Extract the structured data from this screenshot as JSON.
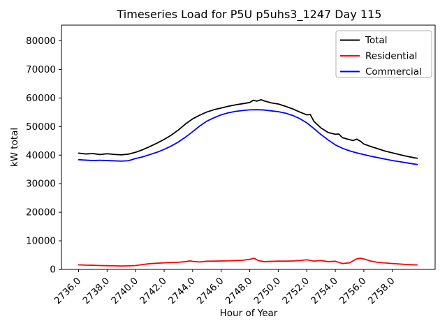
{
  "window": {
    "background": "#ffffff"
  },
  "chart_data": {
    "type": "line",
    "title": "Timeseries Load for P5U p5uhs3_1247  Day 115",
    "xlabel": "Hour of Year",
    "ylabel": "kW total",
    "xlim": [
      2734.8,
      2761.0
    ],
    "ylim": [
      0,
      85500
    ],
    "grid": false,
    "legend_position": "upper right",
    "xticks": [
      2736,
      2738,
      2740,
      2742,
      2744,
      2746,
      2748,
      2750,
      2752,
      2754,
      2756,
      2758
    ],
    "xtick_labels": [
      "2736.0",
      "2738.0",
      "2740.0",
      "2742.0",
      "2744.0",
      "2746.0",
      "2748.0",
      "2750.0",
      "2752.0",
      "2754.0",
      "2756.0",
      "2758.0"
    ],
    "yticks": [
      0,
      10000,
      20000,
      30000,
      40000,
      50000,
      60000,
      70000,
      80000
    ],
    "ytick_labels": [
      "0",
      "10000",
      "20000",
      "30000",
      "40000",
      "50000",
      "60000",
      "70000",
      "80000"
    ],
    "series": [
      {
        "name": "Total",
        "color": "#000000",
        "points": [
          [
            2736,
            40700
          ],
          [
            2736.5,
            40400
          ],
          [
            2737,
            40550
          ],
          [
            2737.5,
            40200
          ],
          [
            2738,
            40500
          ],
          [
            2738.5,
            40250
          ],
          [
            2739,
            40100
          ],
          [
            2739.5,
            40350
          ],
          [
            2740,
            41000
          ],
          [
            2740.5,
            41900
          ],
          [
            2741,
            43000
          ],
          [
            2741.5,
            44200
          ],
          [
            2742,
            45500
          ],
          [
            2742.5,
            47000
          ],
          [
            2743,
            48800
          ],
          [
            2743.5,
            50900
          ],
          [
            2744,
            52700
          ],
          [
            2744.5,
            54000
          ],
          [
            2745,
            55100
          ],
          [
            2745.5,
            55900
          ],
          [
            2746,
            56500
          ],
          [
            2746.5,
            57100
          ],
          [
            2747,
            57600
          ],
          [
            2747.5,
            58000
          ],
          [
            2748,
            58400
          ],
          [
            2748.25,
            59200
          ],
          [
            2748.5,
            58900
          ],
          [
            2748.8,
            59400
          ],
          [
            2749,
            59000
          ],
          [
            2749.5,
            58300
          ],
          [
            2750,
            57900
          ],
          [
            2750.5,
            57100
          ],
          [
            2751,
            56200
          ],
          [
            2751.5,
            55100
          ],
          [
            2752,
            54100
          ],
          [
            2752.25,
            54200
          ],
          [
            2752.5,
            51800
          ],
          [
            2753,
            49500
          ],
          [
            2753.25,
            48700
          ],
          [
            2753.5,
            47900
          ],
          [
            2754,
            47300
          ],
          [
            2754.25,
            47400
          ],
          [
            2754.5,
            46100
          ],
          [
            2755,
            45400
          ],
          [
            2755.25,
            45100
          ],
          [
            2755.5,
            45600
          ],
          [
            2755.75,
            44900
          ],
          [
            2756,
            43900
          ],
          [
            2756.5,
            43000
          ],
          [
            2757,
            42200
          ],
          [
            2757.5,
            41400
          ],
          [
            2758,
            40800
          ],
          [
            2758.5,
            40200
          ],
          [
            2759,
            39600
          ],
          [
            2759.5,
            39100
          ],
          [
            2759.75,
            38900
          ]
        ]
      },
      {
        "name": "Residential",
        "color": "#ff0000",
        "points": [
          [
            2736,
            1600
          ],
          [
            2736.5,
            1500
          ],
          [
            2737,
            1450
          ],
          [
            2737.5,
            1350
          ],
          [
            2738,
            1300
          ],
          [
            2738.5,
            1250
          ],
          [
            2739,
            1200
          ],
          [
            2739.5,
            1250
          ],
          [
            2740,
            1350
          ],
          [
            2740.5,
            1700
          ],
          [
            2741,
            2000
          ],
          [
            2741.5,
            2150
          ],
          [
            2742,
            2300
          ],
          [
            2742.5,
            2400
          ],
          [
            2743,
            2500
          ],
          [
            2743.5,
            2700
          ],
          [
            2743.8,
            3000
          ],
          [
            2744,
            2800
          ],
          [
            2744.5,
            2600
          ],
          [
            2745,
            2850
          ],
          [
            2745.5,
            2900
          ],
          [
            2746,
            2950
          ],
          [
            2746.5,
            3000
          ],
          [
            2747,
            3100
          ],
          [
            2747.5,
            3200
          ],
          [
            2748,
            3500
          ],
          [
            2748.3,
            3900
          ],
          [
            2748.6,
            3100
          ],
          [
            2749,
            2700
          ],
          [
            2749.5,
            2800
          ],
          [
            2750,
            2900
          ],
          [
            2750.5,
            2900
          ],
          [
            2751,
            2950
          ],
          [
            2751.5,
            3100
          ],
          [
            2752,
            3350
          ],
          [
            2752.5,
            2900
          ],
          [
            2753,
            3100
          ],
          [
            2753.5,
            2700
          ],
          [
            2754,
            2850
          ],
          [
            2754.5,
            2050
          ],
          [
            2755,
            2300
          ],
          [
            2755.5,
            3700
          ],
          [
            2755.75,
            3900
          ],
          [
            2756,
            3650
          ],
          [
            2756.5,
            2900
          ],
          [
            2757,
            2450
          ],
          [
            2757.5,
            2250
          ],
          [
            2758,
            2050
          ],
          [
            2758.5,
            1900
          ],
          [
            2759,
            1700
          ],
          [
            2759.5,
            1600
          ],
          [
            2759.75,
            1550
          ]
        ]
      },
      {
        "name": "Commercial",
        "color": "#0000ff",
        "points": [
          [
            2736,
            38400
          ],
          [
            2736.5,
            38250
          ],
          [
            2737,
            38100
          ],
          [
            2737.5,
            38200
          ],
          [
            2738,
            38100
          ],
          [
            2738.5,
            38000
          ],
          [
            2739,
            37900
          ],
          [
            2739.5,
            38050
          ],
          [
            2740,
            38800
          ],
          [
            2740.5,
            39400
          ],
          [
            2741,
            40200
          ],
          [
            2741.5,
            41000
          ],
          [
            2742,
            42000
          ],
          [
            2742.5,
            43200
          ],
          [
            2743,
            44600
          ],
          [
            2743.5,
            46300
          ],
          [
            2744,
            48200
          ],
          [
            2744.5,
            50200
          ],
          [
            2745,
            51900
          ],
          [
            2745.5,
            53100
          ],
          [
            2746,
            54100
          ],
          [
            2746.5,
            54800
          ],
          [
            2747,
            55300
          ],
          [
            2747.5,
            55600
          ],
          [
            2748,
            55850
          ],
          [
            2748.5,
            55900
          ],
          [
            2749,
            55800
          ],
          [
            2749.5,
            55500
          ],
          [
            2750,
            55200
          ],
          [
            2750.5,
            54700
          ],
          [
            2751,
            53900
          ],
          [
            2751.5,
            52800
          ],
          [
            2752,
            51300
          ],
          [
            2752.5,
            49300
          ],
          [
            2753,
            47200
          ],
          [
            2753.5,
            45300
          ],
          [
            2754,
            43600
          ],
          [
            2754.5,
            42400
          ],
          [
            2755,
            41500
          ],
          [
            2755.5,
            40800
          ],
          [
            2756,
            40200
          ],
          [
            2756.5,
            39600
          ],
          [
            2757,
            39100
          ],
          [
            2757.5,
            38600
          ],
          [
            2758,
            38100
          ],
          [
            2758.5,
            37700
          ],
          [
            2759,
            37300
          ],
          [
            2759.5,
            36900
          ],
          [
            2759.75,
            36700
          ]
        ]
      }
    ]
  },
  "legend": {
    "border_color": "#b0b0b0",
    "items": [
      {
        "label": "Total",
        "color": "#000000"
      },
      {
        "label": "Residential",
        "color": "#ff0000"
      },
      {
        "label": "Commercial",
        "color": "#0000ff"
      }
    ]
  },
  "axes": {
    "spine_color": "#000000",
    "tick_color": "#000000"
  }
}
